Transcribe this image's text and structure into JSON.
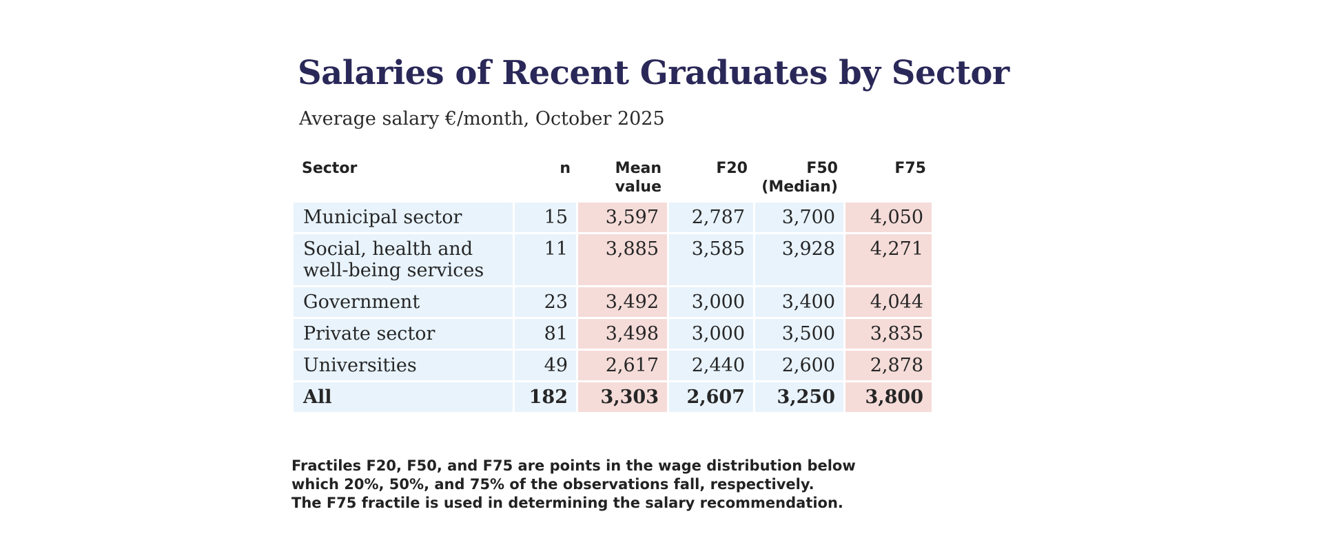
{
  "title": "Salaries of Recent Graduates by Sector",
  "subtitle": "Average salary €/month, October 2025",
  "colors": {
    "title": "#2a2858",
    "cell_blue": "#e8f3fc",
    "cell_pink": "#f5dcd9",
    "text": "#222222"
  },
  "table": {
    "headers": {
      "sector": "Sector",
      "n": "n",
      "mean": "Mean value",
      "f20": "F20",
      "f50": "F50 (Median)",
      "f75": "F75"
    },
    "rows": [
      {
        "sector": "Municipal sector",
        "n": "15",
        "mean": "3,597",
        "f20": "2,787",
        "f50": "3,700",
        "f75": "4,050"
      },
      {
        "sector": "Social, health and well-being services",
        "n": "11",
        "mean": "3,885",
        "f20": "3,585",
        "f50": "3,928",
        "f75": "4,271"
      },
      {
        "sector": "Government",
        "n": "23",
        "mean": "3,492",
        "f20": "3,000",
        "f50": "3,400",
        "f75": "4,044"
      },
      {
        "sector": "Private sector",
        "n": "81",
        "mean": "3,498",
        "f20": "3,000",
        "f50": "3,500",
        "f75": "3,835"
      },
      {
        "sector": "Universities",
        "n": "49",
        "mean": "2,617",
        "f20": "2,440",
        "f50": "2,600",
        "f75": "2,878"
      }
    ],
    "total": {
      "sector": "All",
      "n": "182",
      "mean": "3,303",
      "f20": "2,607",
      "f50": "3,250",
      "f75": "3,800"
    }
  },
  "footnote": {
    "lines": [
      "Fractiles F20, F50, and F75 are points in the wage distribution below",
      "which 20%, 50%, and 75% of the observations fall, respectively.",
      "The F75 fractile is used in determining the salary recommendation."
    ]
  }
}
